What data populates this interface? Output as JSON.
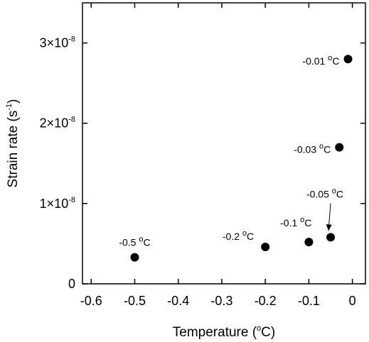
{
  "chart_data": {
    "type": "scatter",
    "xlabel": "Temperature",
    "xlabel_unit_pre": "(",
    "xlabel_unit_sup": "o",
    "xlabel_unit_post": "C)",
    "ylabel": "Strain rate (s",
    "ylabel_sup": "-1",
    "ylabel_post": ")",
    "xlim": [
      -0.62,
      0.03
    ],
    "ylim": [
      0,
      3.5e-08
    ],
    "x_ticks": [
      {
        "value": -0.6,
        "label": "-0.6"
      },
      {
        "value": -0.5,
        "label": "-0.5"
      },
      {
        "value": -0.4,
        "label": "-0.4"
      },
      {
        "value": -0.3,
        "label": "-0.3"
      },
      {
        "value": -0.2,
        "label": "-0.2"
      },
      {
        "value": -0.1,
        "label": "-0.1"
      },
      {
        "value": 0,
        "label": "0"
      }
    ],
    "y_ticks": [
      {
        "value": 0,
        "mantissa": "0",
        "exp": ""
      },
      {
        "value": 1e-08,
        "mantissa": "1×10",
        "exp": "-8"
      },
      {
        "value": 2e-08,
        "mantissa": "2×10",
        "exp": "-8"
      },
      {
        "value": 3e-08,
        "mantissa": "3×10",
        "exp": "-8"
      }
    ],
    "grid": false,
    "points": [
      {
        "x": -0.5,
        "y": 3.3e-09,
        "label": "-0.5 ",
        "label_unit": "C"
      },
      {
        "x": -0.2,
        "y": 4.6e-09,
        "label": "-0.2 ",
        "label_unit": "C"
      },
      {
        "x": -0.1,
        "y": 5.2e-09,
        "label": "-0.1 ",
        "label_unit": "C"
      },
      {
        "x": -0.05,
        "y": 5.8e-09,
        "label": "-0.05 ",
        "label_unit": "C"
      },
      {
        "x": -0.03,
        "y": 1.7e-08,
        "label": "-0.03 ",
        "label_unit": "C"
      },
      {
        "x": -0.01,
        "y": 2.8e-08,
        "label": "-0.01 ",
        "label_unit": "C"
      }
    ],
    "degree_symbol": "o",
    "marker_color": "#000000"
  }
}
